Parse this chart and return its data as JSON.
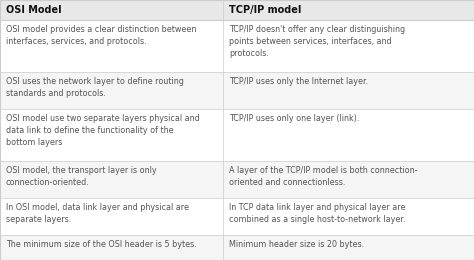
{
  "col1_header": "OSI Model",
  "col2_header": "TCP/IP model",
  "header_bg": "#e8e8e8",
  "row_bg_odd": "#f5f5f5",
  "row_bg_even": "#ffffff",
  "border_color": "#cccccc",
  "header_text_color": "#111111",
  "cell_text_color": "#555555",
  "header_fontsize": 7.0,
  "cell_fontsize": 5.8,
  "col_split": 0.47,
  "rows": [
    [
      "OSI model provides a clear distinction between\ninterfaces, services, and protocols.",
      "TCP/IP doesn't offer any clear distinguishing\npoints between services, interfaces, and\nprotocols."
    ],
    [
      "OSI uses the network layer to define routing\nstandards and protocols.",
      "TCP/IP uses only the Internet layer."
    ],
    [
      "OSI model use two separate layers physical and\ndata link to define the functionality of the\nbottom layers",
      "TCP/IP uses only one layer (link)."
    ],
    [
      "OSI model, the transport layer is only\nconnection-oriented.",
      "A layer of the TCP/IP model is both connection-\noriented and connectionless."
    ],
    [
      "In OSI model, data link layer and physical are\nseparate layers.",
      "In TCP data link layer and physical layer are\ncombined as a single host-to-network layer."
    ],
    [
      "The minimum size of the OSI header is 5 bytes.",
      "Minimum header size is 20 bytes."
    ]
  ],
  "row_line_counts": [
    3,
    2,
    3,
    2,
    2,
    1
  ]
}
